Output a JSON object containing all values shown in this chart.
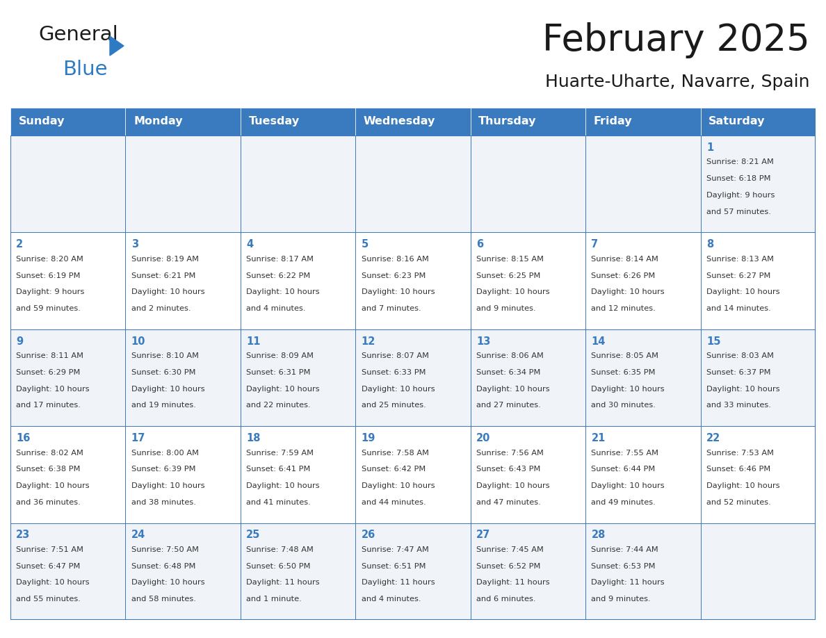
{
  "title": "February 2025",
  "subtitle": "Huarte-Uharte, Navarre, Spain",
  "header_bg": "#3a7abf",
  "header_text": "#ffffff",
  "cell_bg_odd": "#f0f4f8",
  "cell_bg_even": "#ffffff",
  "border_color": "#3a7abf",
  "day_number_color": "#3a7abf",
  "info_color": "#333333",
  "logo_general_color": "#1a1a1a",
  "logo_blue_color": "#2e7bc4",
  "logo_triangle_color": "#2e7bc4",
  "day_names": [
    "Sunday",
    "Monday",
    "Tuesday",
    "Wednesday",
    "Thursday",
    "Friday",
    "Saturday"
  ],
  "calendar": [
    [
      null,
      null,
      null,
      null,
      null,
      null,
      {
        "day": "1",
        "sunrise": "8:21 AM",
        "sunset": "6:18 PM",
        "daylight_line1": "Daylight: 9 hours",
        "daylight_line2": "and 57 minutes."
      }
    ],
    [
      {
        "day": "2",
        "sunrise": "8:20 AM",
        "sunset": "6:19 PM",
        "daylight_line1": "Daylight: 9 hours",
        "daylight_line2": "and 59 minutes."
      },
      {
        "day": "3",
        "sunrise": "8:19 AM",
        "sunset": "6:21 PM",
        "daylight_line1": "Daylight: 10 hours",
        "daylight_line2": "and 2 minutes."
      },
      {
        "day": "4",
        "sunrise": "8:17 AM",
        "sunset": "6:22 PM",
        "daylight_line1": "Daylight: 10 hours",
        "daylight_line2": "and 4 minutes."
      },
      {
        "day": "5",
        "sunrise": "8:16 AM",
        "sunset": "6:23 PM",
        "daylight_line1": "Daylight: 10 hours",
        "daylight_line2": "and 7 minutes."
      },
      {
        "day": "6",
        "sunrise": "8:15 AM",
        "sunset": "6:25 PM",
        "daylight_line1": "Daylight: 10 hours",
        "daylight_line2": "and 9 minutes."
      },
      {
        "day": "7",
        "sunrise": "8:14 AM",
        "sunset": "6:26 PM",
        "daylight_line1": "Daylight: 10 hours",
        "daylight_line2": "and 12 minutes."
      },
      {
        "day": "8",
        "sunrise": "8:13 AM",
        "sunset": "6:27 PM",
        "daylight_line1": "Daylight: 10 hours",
        "daylight_line2": "and 14 minutes."
      }
    ],
    [
      {
        "day": "9",
        "sunrise": "8:11 AM",
        "sunset": "6:29 PM",
        "daylight_line1": "Daylight: 10 hours",
        "daylight_line2": "and 17 minutes."
      },
      {
        "day": "10",
        "sunrise": "8:10 AM",
        "sunset": "6:30 PM",
        "daylight_line1": "Daylight: 10 hours",
        "daylight_line2": "and 19 minutes."
      },
      {
        "day": "11",
        "sunrise": "8:09 AM",
        "sunset": "6:31 PM",
        "daylight_line1": "Daylight: 10 hours",
        "daylight_line2": "and 22 minutes."
      },
      {
        "day": "12",
        "sunrise": "8:07 AM",
        "sunset": "6:33 PM",
        "daylight_line1": "Daylight: 10 hours",
        "daylight_line2": "and 25 minutes."
      },
      {
        "day": "13",
        "sunrise": "8:06 AM",
        "sunset": "6:34 PM",
        "daylight_line1": "Daylight: 10 hours",
        "daylight_line2": "and 27 minutes."
      },
      {
        "day": "14",
        "sunrise": "8:05 AM",
        "sunset": "6:35 PM",
        "daylight_line1": "Daylight: 10 hours",
        "daylight_line2": "and 30 minutes."
      },
      {
        "day": "15",
        "sunrise": "8:03 AM",
        "sunset": "6:37 PM",
        "daylight_line1": "Daylight: 10 hours",
        "daylight_line2": "and 33 minutes."
      }
    ],
    [
      {
        "day": "16",
        "sunrise": "8:02 AM",
        "sunset": "6:38 PM",
        "daylight_line1": "Daylight: 10 hours",
        "daylight_line2": "and 36 minutes."
      },
      {
        "day": "17",
        "sunrise": "8:00 AM",
        "sunset": "6:39 PM",
        "daylight_line1": "Daylight: 10 hours",
        "daylight_line2": "and 38 minutes."
      },
      {
        "day": "18",
        "sunrise": "7:59 AM",
        "sunset": "6:41 PM",
        "daylight_line1": "Daylight: 10 hours",
        "daylight_line2": "and 41 minutes."
      },
      {
        "day": "19",
        "sunrise": "7:58 AM",
        "sunset": "6:42 PM",
        "daylight_line1": "Daylight: 10 hours",
        "daylight_line2": "and 44 minutes."
      },
      {
        "day": "20",
        "sunrise": "7:56 AM",
        "sunset": "6:43 PM",
        "daylight_line1": "Daylight: 10 hours",
        "daylight_line2": "and 47 minutes."
      },
      {
        "day": "21",
        "sunrise": "7:55 AM",
        "sunset": "6:44 PM",
        "daylight_line1": "Daylight: 10 hours",
        "daylight_line2": "and 49 minutes."
      },
      {
        "day": "22",
        "sunrise": "7:53 AM",
        "sunset": "6:46 PM",
        "daylight_line1": "Daylight: 10 hours",
        "daylight_line2": "and 52 minutes."
      }
    ],
    [
      {
        "day": "23",
        "sunrise": "7:51 AM",
        "sunset": "6:47 PM",
        "daylight_line1": "Daylight: 10 hours",
        "daylight_line2": "and 55 minutes."
      },
      {
        "day": "24",
        "sunrise": "7:50 AM",
        "sunset": "6:48 PM",
        "daylight_line1": "Daylight: 10 hours",
        "daylight_line2": "and 58 minutes."
      },
      {
        "day": "25",
        "sunrise": "7:48 AM",
        "sunset": "6:50 PM",
        "daylight_line1": "Daylight: 11 hours",
        "daylight_line2": "and 1 minute."
      },
      {
        "day": "26",
        "sunrise": "7:47 AM",
        "sunset": "6:51 PM",
        "daylight_line1": "Daylight: 11 hours",
        "daylight_line2": "and 4 minutes."
      },
      {
        "day": "27",
        "sunrise": "7:45 AM",
        "sunset": "6:52 PM",
        "daylight_line1": "Daylight: 11 hours",
        "daylight_line2": "and 6 minutes."
      },
      {
        "day": "28",
        "sunrise": "7:44 AM",
        "sunset": "6:53 PM",
        "daylight_line1": "Daylight: 11 hours",
        "daylight_line2": "and 9 minutes."
      },
      null
    ]
  ]
}
